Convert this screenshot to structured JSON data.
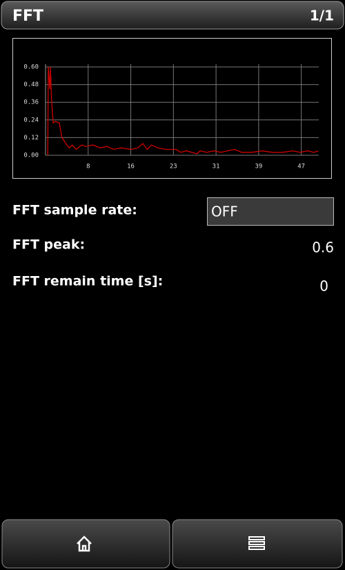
{
  "header": {
    "title": "FFT",
    "page": "1/1"
  },
  "chart_data": {
    "type": "line",
    "color": "#d00000",
    "grid": true,
    "x": [
      0.4,
      0.5,
      0.8,
      0.9,
      1.1,
      1.4,
      1.8,
      2.5,
      3.0,
      3.7,
      4.3,
      4.9,
      5.6,
      6.6,
      7.4,
      8.7,
      10,
      11.2,
      12.5,
      13.8,
      15.7,
      16.9,
      17.8,
      18.6,
      19.4,
      20.5,
      22,
      23.9,
      24.7,
      25.8,
      27.7,
      28.3,
      29.5,
      30.8,
      32.1,
      33.3,
      34.6,
      35.9,
      37.8,
      39.6,
      41.5,
      43.4,
      45.3,
      46.6,
      47.9,
      49.1,
      49.9
    ],
    "values": [
      0,
      0.6,
      0.45,
      0.6,
      0.38,
      0.22,
      0.23,
      0.22,
      0.12,
      0.08,
      0.05,
      0.07,
      0.04,
      0.07,
      0.06,
      0.07,
      0.05,
      0.06,
      0.04,
      0.05,
      0.04,
      0.05,
      0.08,
      0.04,
      0.07,
      0.05,
      0.04,
      0.04,
      0.02,
      0.03,
      0.01,
      0.03,
      0.02,
      0.03,
      0.02,
      0.03,
      0.04,
      0.02,
      0.02,
      0.03,
      0.02,
      0.02,
      0.03,
      0.02,
      0.03,
      0.02,
      0.03
    ],
    "xlim": [
      0,
      50
    ],
    "ylim": [
      0,
      0.6
    ],
    "xticks": [
      {
        "value": 7.8,
        "label": "8"
      },
      {
        "value": 15.6,
        "label": "16"
      },
      {
        "value": 23.4,
        "label": "23"
      },
      {
        "value": 31.2,
        "label": "31"
      },
      {
        "value": 39.0,
        "label": "39"
      },
      {
        "value": 46.8,
        "label": "47"
      }
    ],
    "yticks": [
      {
        "value": 0,
        "label": "0.00"
      },
      {
        "value": 0.12,
        "label": "0.12"
      },
      {
        "value": 0.24,
        "label": "0.24"
      },
      {
        "value": 0.36,
        "label": "0.36"
      },
      {
        "value": 0.48,
        "label": "0.48"
      },
      {
        "value": 0.6,
        "label": "0.60"
      }
    ]
  },
  "fields": [
    {
      "label": "FFT sample rate:",
      "value": "OFF"
    },
    {
      "label": "FFT peak:",
      "value": 0.6
    },
    {
      "label": "FFT remain time [s]:",
      "value": 0
    }
  ]
}
